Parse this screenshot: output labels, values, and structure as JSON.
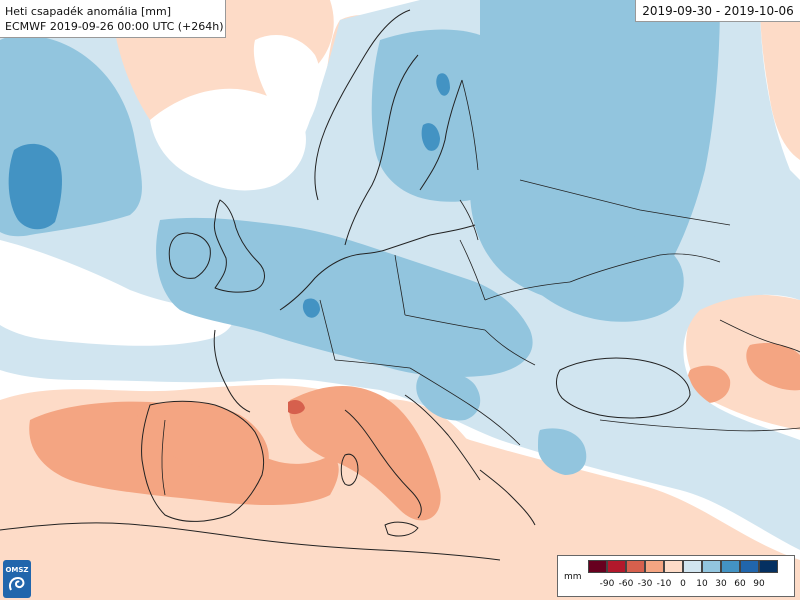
{
  "title": {
    "line1": "Heti csapadék anomália [mm]",
    "line2": "ECMWF 2019-09-26 00:00 UTC (+264h)"
  },
  "date_range": "2019-09-30 - 2019-10-06",
  "logo": {
    "text": "OMSZ",
    "icon": "omsz-logo-icon"
  },
  "legend": {
    "unit": "mm",
    "ticks": [
      "-90",
      "-60",
      "-30",
      "-10",
      "0",
      "10",
      "30",
      "60",
      "90"
    ],
    "colors": [
      "#67001f",
      "#b2182b",
      "#d6604d",
      "#f4a582",
      "#fddbc7",
      "#d1e5f0",
      "#92c5de",
      "#4393c3",
      "#2166ac",
      "#053061"
    ]
  },
  "colors": {
    "background": "#ffffff",
    "light_blue": "#d1e5f0",
    "mid_blue": "#92c5de",
    "blue": "#4393c3",
    "light_red": "#fddbc7",
    "mid_red": "#f4a582",
    "red": "#d6604d",
    "dark_red": "#b2182b",
    "border": "#222222"
  }
}
